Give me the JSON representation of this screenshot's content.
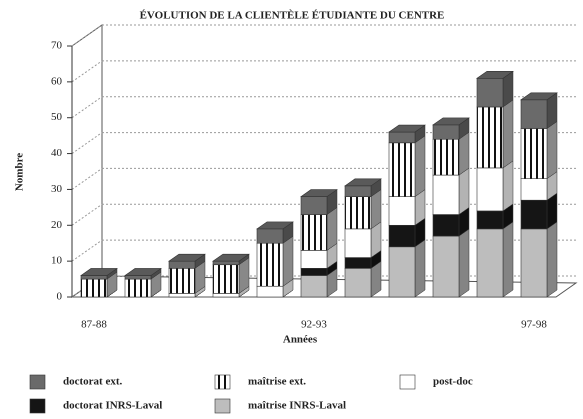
{
  "chart_data": {
    "type": "bar3d-stacked",
    "title": "ÉVOLUTION DE LA CLIENTÈLE ÉTUDIANTE DU CENTRE",
    "y_label": "Nombre",
    "x_label": "Années",
    "categories": [
      "87-88",
      null,
      null,
      null,
      null,
      "92-93",
      null,
      null,
      null,
      null,
      "97-98"
    ],
    "series": [
      {
        "name": "maîtrise INRS-Laval",
        "color": "#bdbdbd",
        "values": [
          0,
          0,
          0,
          0,
          0,
          6,
          8,
          14,
          17,
          19,
          19
        ]
      },
      {
        "name": "doctorat INRS-Laval",
        "color": "#151515",
        "values": [
          0,
          0,
          0,
          0,
          0,
          2,
          3,
          6,
          6,
          5,
          8
        ]
      },
      {
        "name": "post-doc",
        "color": "#ffffff",
        "values": [
          0,
          0,
          1,
          1,
          3,
          5,
          8,
          8,
          11,
          12,
          6
        ]
      },
      {
        "name": "maîtrise ext.",
        "color": "#ffffff",
        "pattern": "vertical-stripes",
        "values": [
          5,
          5,
          7,
          8,
          12,
          10,
          9,
          15,
          10,
          17,
          14
        ]
      },
      {
        "name": "doctorat ext.",
        "color": "#6a6a6a",
        "values": [
          1,
          1,
          2,
          1,
          4,
          5,
          3,
          3,
          4,
          8,
          8
        ]
      }
    ],
    "ylim": [
      0,
      70
    ],
    "yticks": [
      0,
      10,
      20,
      30,
      40,
      50,
      60,
      70
    ],
    "grid": true
  }
}
